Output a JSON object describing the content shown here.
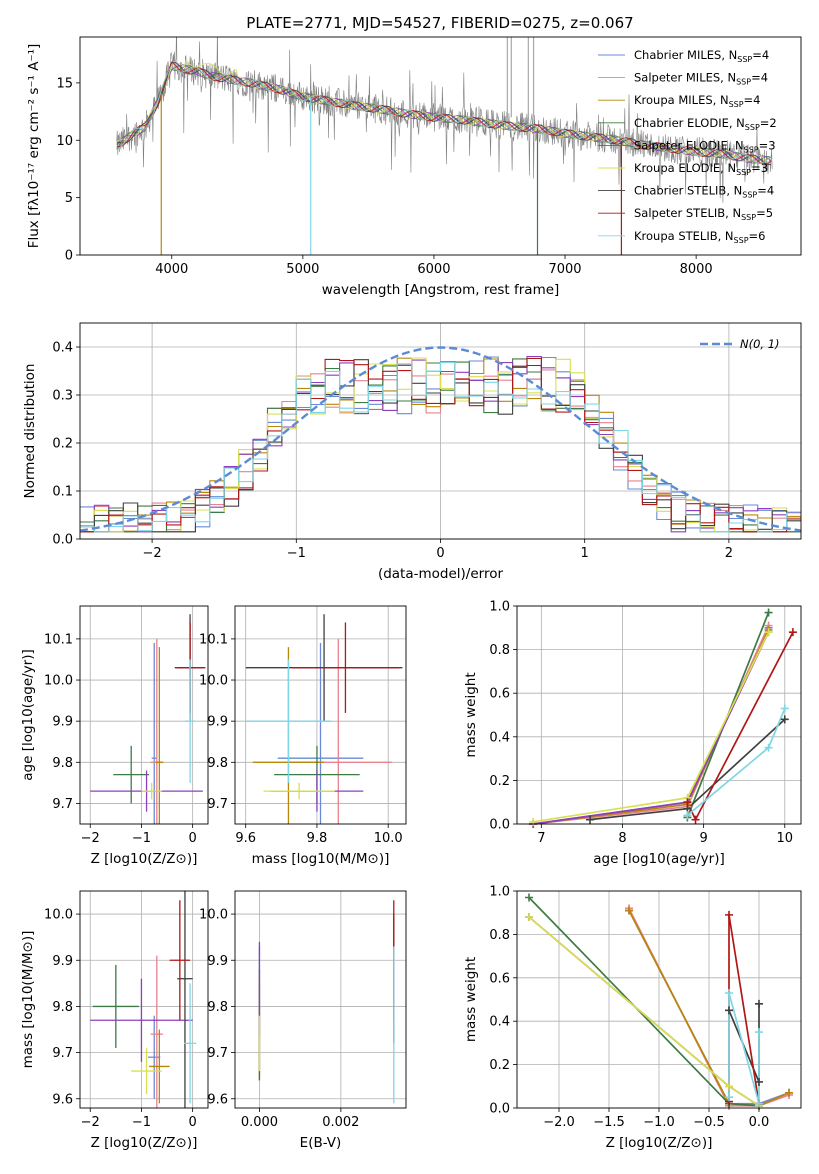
{
  "figure": {
    "title": "PLATE=2771, MJD=54527, FIBERID=0275, z=0.067"
  },
  "colors": [
    "#6a8ad8",
    "#e8828e",
    "#b8860b",
    "#3e7a45",
    "#8e3fbd",
    "#d8e050",
    "#404040",
    "#b01818",
    "#7fd6e6"
  ],
  "chart_data": [
    {
      "id": "spectrum",
      "type": "line",
      "xlabel": "wavelength [Angstrom, rest frame]",
      "ylabel": "Flux [fλ10⁻¹⁷ erg cm⁻² s⁻¹ A⁻¹]",
      "xlim": [
        3300,
        8800
      ],
      "ylim": [
        0,
        19
      ],
      "xticks": [
        4000,
        5000,
        6000,
        7000,
        8000
      ],
      "yticks": [
        0,
        5,
        10,
        15
      ],
      "continuum": [
        [
          3580,
          9.5
        ],
        [
          3700,
          10.5
        ],
        [
          3800,
          11.2
        ],
        [
          3900,
          13.5
        ],
        [
          4000,
          16.5
        ],
        [
          4100,
          16.2
        ],
        [
          4200,
          16.0
        ],
        [
          4300,
          15.6
        ],
        [
          4400,
          15.4
        ],
        [
          4500,
          15.2
        ],
        [
          4600,
          15.0
        ],
        [
          4800,
          14.5
        ],
        [
          5000,
          13.8
        ],
        [
          5200,
          13.4
        ],
        [
          5400,
          13.0
        ],
        [
          5600,
          12.7
        ],
        [
          5800,
          12.3
        ],
        [
          6000,
          12.0
        ],
        [
          6200,
          11.8
        ],
        [
          6400,
          11.5
        ],
        [
          6600,
          11.2
        ],
        [
          6800,
          11.0
        ],
        [
          7000,
          10.6
        ],
        [
          7200,
          10.3
        ],
        [
          7400,
          10.0
        ],
        [
          7600,
          9.6
        ],
        [
          7800,
          9.3
        ],
        [
          8000,
          9.0
        ],
        [
          8200,
          8.8
        ],
        [
          8400,
          8.4
        ],
        [
          8580,
          8.2
        ]
      ],
      "legend": [
        {
          "name": "Chabrier MILES",
          "n": "4"
        },
        {
          "name": "Salpeter MILES",
          "n": "4"
        },
        {
          "name": "Kroupa MILES",
          "n": "4"
        },
        {
          "name": "Chabrier ELODIE",
          "n": "2"
        },
        {
          "name": "Salpeter ELODIE",
          "n": "3"
        },
        {
          "name": "Kroupa ELODIE",
          "n": "3"
        },
        {
          "name": "Chabrier STELIB",
          "n": "4"
        },
        {
          "name": "Salpeter STELIB",
          "n": "5"
        },
        {
          "name": "Kroupa STELIB",
          "n": "6"
        }
      ]
    },
    {
      "id": "residuals",
      "type": "histogram",
      "xlabel": "(data-model)/error",
      "ylabel": "Normed distribution",
      "xlim": [
        -2.5,
        2.5
      ],
      "ylim": [
        0,
        0.45
      ],
      "xticks": [
        -2,
        -1,
        0,
        1,
        2
      ],
      "yticks": [
        0.0,
        0.1,
        0.2,
        0.3,
        0.4
      ],
      "bin_width": 0.1,
      "legend_label": "N(0, 1)"
    },
    {
      "id": "z-age",
      "type": "scatter",
      "xlabel": "Z [log10(Z/Z⊙)]",
      "ylabel": "age  [log10(age/yr)]",
      "xlim": [
        -2.2,
        0.3
      ],
      "ylim": [
        9.65,
        10.18
      ],
      "xticks": [
        -2,
        -1,
        0
      ],
      "yticks": [
        9.7,
        9.8,
        9.9,
        10.0,
        10.1
      ],
      "points": [
        {
          "x": -0.75,
          "xerr": 0.05,
          "y": 9.81,
          "yerr": 0.28
        },
        {
          "x": -0.7,
          "xerr": 0.12,
          "y": 9.8,
          "yerr": 0.3
        },
        {
          "x": -0.65,
          "xerr": 0.08,
          "y": 9.8,
          "yerr": 0.28
        },
        {
          "x": -1.2,
          "xerr": 0.35,
          "y": 9.77,
          "yerr": 0.07
        },
        {
          "x": -0.9,
          "xerr": 1.1,
          "y": 9.73,
          "yerr": 0.05
        },
        {
          "x": -0.8,
          "xerr": 0.2,
          "y": 9.73,
          "yerr": 0.02
        },
        {
          "x": -0.05,
          "xerr": 0.25,
          "y": 10.03,
          "yerr": 0.13
        },
        {
          "x": -0.05,
          "xerr": 0.3,
          "y": 10.03,
          "yerr": 0.11
        },
        {
          "x": -0.05,
          "xerr": 0.1,
          "y": 9.9,
          "yerr": 0.15
        }
      ]
    },
    {
      "id": "mass-age",
      "type": "scatter",
      "xlabel": "mass [log10(M/M⊙)]",
      "ylabel": "",
      "xlim": [
        9.57,
        10.05
      ],
      "ylim": [
        9.65,
        10.18
      ],
      "xticks": [
        9.6,
        9.8,
        10.0
      ],
      "yticks": [
        9.7,
        9.8,
        9.9,
        10.0,
        10.1
      ],
      "points": [
        {
          "x": 9.81,
          "xerr": 0.12,
          "y": 9.81,
          "yerr": 0.28
        },
        {
          "x": 9.86,
          "xerr": 0.15,
          "y": 9.8,
          "yerr": 0.3
        },
        {
          "x": 9.72,
          "xerr": 0.1,
          "y": 9.8,
          "yerr": 0.28
        },
        {
          "x": 9.8,
          "xerr": 0.12,
          "y": 9.77,
          "yerr": 0.07
        },
        {
          "x": 9.8,
          "xerr": 0.13,
          "y": 9.73,
          "yerr": 0.05
        },
        {
          "x": 9.75,
          "xerr": 0.1,
          "y": 9.73,
          "yerr": 0.02
        },
        {
          "x": 9.82,
          "xerr": 0.22,
          "y": 10.03,
          "yerr": 0.13
        },
        {
          "x": 9.88,
          "xerr": 0.15,
          "y": 10.03,
          "yerr": 0.11
        },
        {
          "x": 9.72,
          "xerr": 0.12,
          "y": 9.9,
          "yerr": 0.15
        }
      ]
    },
    {
      "id": "mw-age",
      "type": "line",
      "xlabel": "age  [log10(age/yr)]",
      "ylabel": "mass weight",
      "xlim": [
        6.7,
        10.2
      ],
      "ylim": [
        0,
        1
      ],
      "xticks": [
        7,
        8,
        9,
        10
      ],
      "yticks": [
        0.0,
        0.2,
        0.4,
        0.6,
        0.8,
        1.0
      ],
      "series": [
        {
          "x": [
            6.9,
            8.8,
            9.8
          ],
          "y": [
            0.0,
            0.1,
            0.9
          ]
        },
        {
          "x": [
            6.9,
            8.8,
            9.8
          ],
          "y": [
            0.0,
            0.08,
            0.91
          ]
        },
        {
          "x": [
            6.9,
            8.8,
            9.8
          ],
          "y": [
            0.0,
            0.09,
            0.89
          ]
        },
        {
          "x": [
            8.8,
            9.8
          ],
          "y": [
            0.03,
            0.97
          ]
        },
        {
          "x": [
            6.9,
            8.8,
            9.8
          ],
          "y": [
            0.0,
            0.1,
            0.88
          ]
        },
        {
          "x": [
            6.9,
            8.8,
            9.8
          ],
          "y": [
            0.01,
            0.12,
            0.88
          ]
        },
        {
          "x": [
            7.6,
            8.8,
            10.0
          ],
          "y": [
            0.02,
            0.07,
            0.48
          ]
        },
        {
          "x": [
            8.8,
            8.9,
            10.1
          ],
          "y": [
            0.1,
            0.02,
            0.88
          ]
        },
        {
          "x": [
            8.8,
            9.8,
            10.0
          ],
          "y": [
            0.04,
            0.35,
            0.53
          ]
        }
      ]
    },
    {
      "id": "z-mass",
      "type": "scatter",
      "xlabel": "Z [log10(Z/Z⊙)]",
      "ylabel": "mass [log10(M/M⊙)]",
      "xlim": [
        -2.2,
        0.3
      ],
      "ylim": [
        9.58,
        10.05
      ],
      "xticks": [
        -2,
        -1,
        0
      ],
      "yticks": [
        9.6,
        9.7,
        9.8,
        9.9,
        10.0
      ],
      "points": [
        {
          "x": -0.75,
          "xerr": 0.12,
          "y": 9.69,
          "yerr": 0.09
        },
        {
          "x": -0.7,
          "xerr": 0.12,
          "y": 9.74,
          "yerr": 0.17
        },
        {
          "x": -0.65,
          "xerr": 0.2,
          "y": 9.67,
          "yerr": 0.08
        },
        {
          "x": -1.5,
          "xerr": 0.45,
          "y": 9.8,
          "yerr": 0.09
        },
        {
          "x": -1.0,
          "xerr": 1.0,
          "y": 9.77,
          "yerr": 0.09
        },
        {
          "x": -0.9,
          "xerr": 0.3,
          "y": 9.66,
          "yerr": 0.05
        },
        {
          "x": -0.15,
          "xerr": 0.15,
          "y": 9.86,
          "yerr": 0.3
        },
        {
          "x": -0.25,
          "xerr": 0.2,
          "y": 9.9,
          "yerr": 0.13
        },
        {
          "x": -0.05,
          "xerr": 0.12,
          "y": 9.72,
          "yerr": 0.13
        }
      ]
    },
    {
      "id": "ebv-mass",
      "type": "scatter",
      "xlabel": "E(B-V)",
      "ylabel": "",
      "xlim": [
        -0.0006,
        0.0036
      ],
      "ylim": [
        9.58,
        10.05
      ],
      "xticks": [
        0.0,
        0.002
      ],
      "yticks": [
        9.6,
        9.7,
        9.8,
        9.9,
        10.0
      ],
      "points": [
        {
          "x": 0.0,
          "xerr": 0,
          "y": 9.83,
          "yerr": 0.1
        },
        {
          "x": 0.0,
          "xerr": 0,
          "y": 9.75,
          "yerr": 0.1
        },
        {
          "x": 0.0,
          "xerr": 0,
          "y": 9.72,
          "yerr": 0.08
        },
        {
          "x": 0.0,
          "xerr": 0,
          "y": 9.76,
          "yerr": 0.12
        },
        {
          "x": 0.0,
          "xerr": 0,
          "y": 9.84,
          "yerr": 0.1
        },
        {
          "x": 0.0,
          "xerr": 0,
          "y": 9.72,
          "yerr": 0.06
        },
        {
          "x": 0.0033,
          "xerr": 0,
          "y": 9.86,
          "yerr": 0.14
        },
        {
          "x": 0.0033,
          "xerr": 0,
          "y": 9.9,
          "yerr": 0.13
        },
        {
          "x": 0.0033,
          "xerr": 0,
          "y": 9.76,
          "yerr": 0.17
        }
      ]
    },
    {
      "id": "mw-z",
      "type": "line",
      "xlabel": "Z [log10(Z/Z⊙)]",
      "ylabel": "mass weight",
      "xlim": [
        -2.42,
        0.42
      ],
      "ylim": [
        0,
        1
      ],
      "xticks": [
        -2.0,
        -1.5,
        -1.0,
        -0.5,
        0.0
      ],
      "yticks": [
        0.0,
        0.2,
        0.4,
        0.6,
        0.8,
        1.0
      ],
      "series": [
        {
          "x": [
            -1.3,
            -0.3,
            0.0,
            0.3
          ],
          "y": [
            0.91,
            0.02,
            0.02,
            0.07
          ]
        },
        {
          "x": [
            -1.3,
            -0.3,
            0.0,
            0.3
          ],
          "y": [
            0.92,
            0.01,
            0.01,
            0.06
          ]
        },
        {
          "x": [
            -1.3,
            -0.3,
            0.0,
            0.3
          ],
          "y": [
            0.91,
            0.02,
            0.01,
            0.07
          ]
        },
        {
          "x": [
            -2.3,
            -0.3,
            0.0
          ],
          "y": [
            0.97,
            0.02,
            0.01
          ]
        },
        {
          "x": [
            -2.3,
            -0.3,
            0.0
          ],
          "y": [
            0.88,
            0.1,
            0.01
          ]
        },
        {
          "x": [
            -2.3,
            -0.3,
            0.0
          ],
          "y": [
            0.88,
            0.1,
            0.01
          ]
        },
        {
          "x": [
            -0.3,
            0.0,
            0.0
          ],
          "y": [
            0.45,
            0.12,
            0.48
          ]
        },
        {
          "x": [
            -0.3,
            -0.3,
            0.0
          ],
          "y": [
            0.03,
            0.89,
            0.02
          ]
        },
        {
          "x": [
            -0.3,
            -0.3,
            0.0,
            0.0
          ],
          "y": [
            0.05,
            0.53,
            0.02,
            0.35
          ]
        }
      ]
    }
  ]
}
